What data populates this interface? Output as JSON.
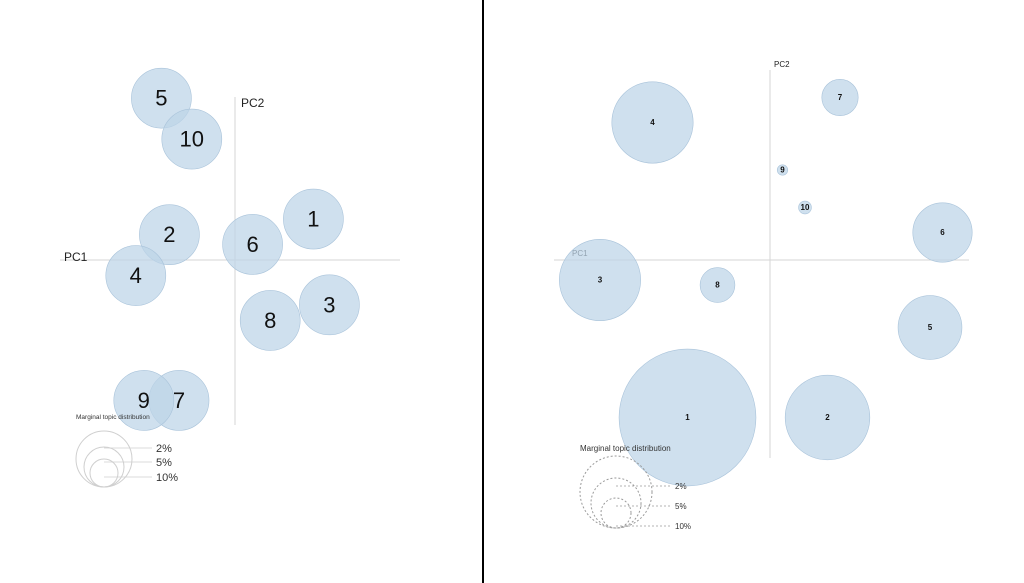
{
  "chart_data": [
    {
      "type": "scatter",
      "x_axis_label": "PC1",
      "y_axis_label": "PC2",
      "legend_title": "Marginal topic distribution",
      "legend_sizes": [
        "2%",
        "5%",
        "10%"
      ],
      "points": [
        {
          "label": "1",
          "x": 0.49,
          "y": 0.21,
          "size": 5
        },
        {
          "label": "2",
          "x": -0.41,
          "y": 0.13,
          "size": 5
        },
        {
          "label": "3",
          "x": 0.59,
          "y": -0.23,
          "size": 5
        },
        {
          "label": "4",
          "x": -0.62,
          "y": -0.08,
          "size": 5
        },
        {
          "label": "5",
          "x": -0.46,
          "y": 0.83,
          "size": 5
        },
        {
          "label": "6",
          "x": 0.11,
          "y": 0.08,
          "size": 5
        },
        {
          "label": "7",
          "x": -0.35,
          "y": -0.72,
          "size": 5
        },
        {
          "label": "8",
          "x": 0.22,
          "y": -0.31,
          "size": 5
        },
        {
          "label": "9",
          "x": -0.57,
          "y": -0.72,
          "size": 5
        },
        {
          "label": "10",
          "x": -0.27,
          "y": 0.62,
          "size": 5
        }
      ]
    },
    {
      "type": "scatter",
      "x_axis_label": "PC1",
      "y_axis_label": "PC2",
      "legend_title": "Marginal topic distribution",
      "legend_sizes": [
        "2%",
        "5%",
        "10%"
      ],
      "points": [
        {
          "label": "1",
          "x": -0.33,
          "y": -0.63,
          "size": 17.0
        },
        {
          "label": "2",
          "x": 0.23,
          "y": -0.63,
          "size": 6.5
        },
        {
          "label": "3",
          "x": -0.68,
          "y": -0.08,
          "size": 6.0
        },
        {
          "label": "4",
          "x": -0.47,
          "y": 0.55,
          "size": 6.0
        },
        {
          "label": "5",
          "x": 0.64,
          "y": -0.27,
          "size": 3.7
        },
        {
          "label": "6",
          "x": 0.69,
          "y": 0.11,
          "size": 3.2
        },
        {
          "label": "7",
          "x": 0.28,
          "y": 0.65,
          "size": 1.2
        },
        {
          "label": "8",
          "x": -0.21,
          "y": -0.1,
          "size": 1.1
        },
        {
          "label": "9",
          "x": 0.05,
          "y": 0.36,
          "size": 0.1
        },
        {
          "label": "10",
          "x": 0.14,
          "y": 0.21,
          "size": 0.15
        }
      ]
    }
  ]
}
